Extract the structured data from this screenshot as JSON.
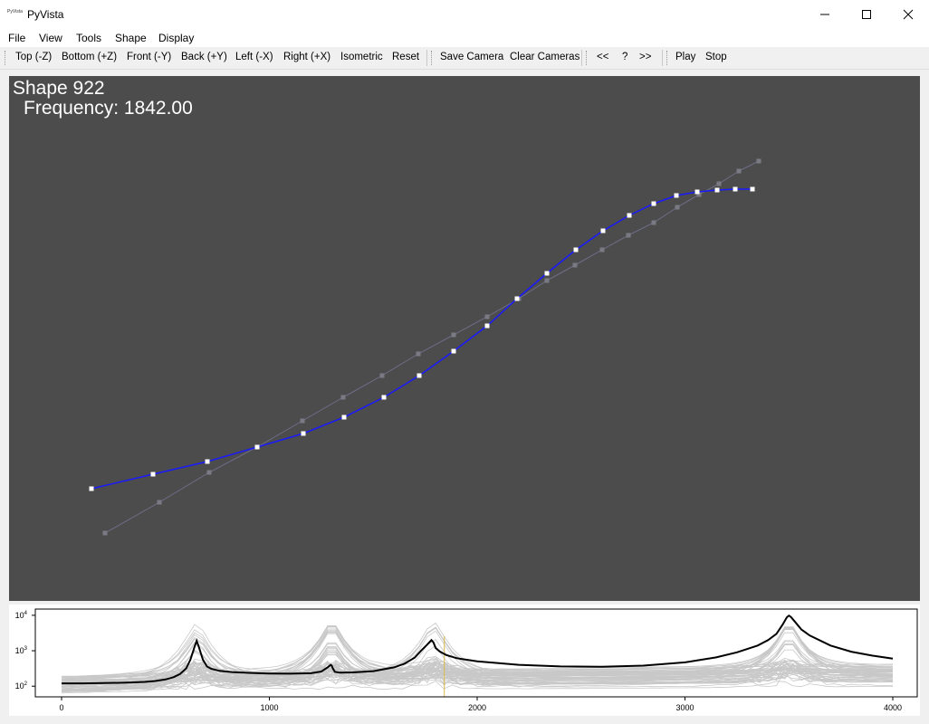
{
  "window": {
    "title": "PyVista",
    "icon_text": "PyVista",
    "controls": [
      "minimize-icon",
      "maximize-icon",
      "close-icon"
    ]
  },
  "menu": {
    "file": "File",
    "view": "View",
    "tools": "Tools",
    "shape": "Shape",
    "display": "Display"
  },
  "toolbar": {
    "top": "Top (-Z)",
    "bottom": "Bottom (+Z)",
    "front": "Front (-Y)",
    "back": "Back (+Y)",
    "left": "Left (-X)",
    "right": "Right (+X)",
    "isometric": "Isometric",
    "reset": "Reset",
    "save_camera": "Save Camera",
    "clear_cameras": "Clear Cameras",
    "prev": "<<",
    "help": "?",
    "next": ">>",
    "play": "Play",
    "stop": "Stop"
  },
  "viewport": {
    "shape_label": "Shape 922",
    "frequency_label": "Frequency: 1842.00",
    "background_color": "#4c4c4c",
    "deformed_color": "#1a1aff",
    "undeformed_color": "#6e6e8a"
  },
  "chart_data": {
    "type": "line",
    "xlim": [
      0,
      4000
    ],
    "ylim": [
      50,
      15000
    ],
    "yscale": "log",
    "x_ticks": [
      "0",
      "1000",
      "2000",
      "3000",
      "4000"
    ],
    "y_ticks": [
      {
        "base": "10",
        "exp": "2"
      },
      {
        "base": "10",
        "exp": "3"
      },
      {
        "base": "10",
        "exp": "4"
      }
    ],
    "grid": false,
    "highlight_frequency": 1842,
    "peaks": [
      650,
      1300,
      1790,
      3500
    ],
    "series": [
      {
        "color": "#000000",
        "x": [
          0,
          100,
          200,
          300,
          400,
          450,
          500,
          540,
          570,
          600,
          620,
          640,
          650,
          660,
          680,
          700,
          720,
          760,
          820,
          900,
          1000,
          1100,
          1200,
          1250,
          1280,
          1295,
          1300,
          1305,
          1315,
          1340,
          1400,
          1500,
          1600,
          1650,
          1700,
          1730,
          1760,
          1780,
          1790,
          1800,
          1820,
          1850,
          1900,
          2000,
          2200,
          2400,
          2600,
          2800,
          3000,
          3150,
          3250,
          3350,
          3400,
          3440,
          3470,
          3490,
          3500,
          3510,
          3530,
          3560,
          3600,
          3700,
          3800,
          3900,
          4000
        ],
        "y": [
          120,
          120,
          122,
          125,
          132,
          140,
          155,
          180,
          220,
          320,
          560,
          1300,
          1900,
          1300,
          560,
          360,
          310,
          270,
          250,
          238,
          228,
          225,
          232,
          260,
          340,
          400,
          380,
          320,
          255,
          240,
          245,
          265,
          340,
          430,
          640,
          1000,
          1500,
          2000,
          1700,
          1200,
          950,
          760,
          620,
          500,
          400,
          360,
          355,
          380,
          470,
          650,
          900,
          1400,
          2000,
          3000,
          5500,
          8800,
          9800,
          9000,
          6500,
          4000,
          2700,
          1400,
          940,
          730,
          600
        ]
      }
    ],
    "background_series_count": 60
  }
}
